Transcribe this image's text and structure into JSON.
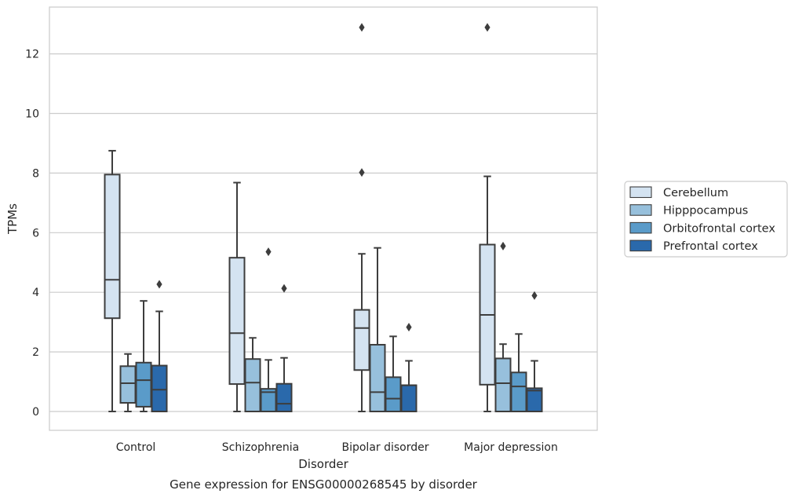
{
  "chart_data": {
    "type": "box",
    "title": "",
    "caption": "Gene expression for ENSG00000268545 by disorder",
    "xlabel": "Disorder",
    "ylabel": "TPMs",
    "ylim": [
      -0.65,
      13.55
    ],
    "yticks": [
      0,
      2,
      4,
      6,
      8,
      10,
      12
    ],
    "grid": "horizontal",
    "legend_position": "right",
    "categories": [
      "Control",
      "Schizophrenia",
      "Bipolar disorder",
      "Major depression"
    ],
    "series": [
      {
        "name": "Cerebellum",
        "color": "#d4e3f1",
        "boxes": [
          {
            "whislo": 0.0,
            "q1": 3.13,
            "med": 4.42,
            "q3": 7.95,
            "whishi": 8.75,
            "fliers": []
          },
          {
            "whislo": 0.0,
            "q1": 0.92,
            "med": 2.63,
            "q3": 5.16,
            "whishi": 7.68,
            "fliers": []
          },
          {
            "whislo": 0.0,
            "q1": 1.39,
            "med": 2.8,
            "q3": 3.41,
            "whishi": 5.29,
            "fliers": [
              8.02,
              12.89
            ]
          },
          {
            "whislo": 0.0,
            "q1": 0.9,
            "med": 3.24,
            "q3": 5.6,
            "whishi": 7.89,
            "fliers": [
              12.89
            ]
          }
        ]
      },
      {
        "name": "Hipppocampus",
        "color": "#97c0dc",
        "boxes": [
          {
            "whislo": 0.0,
            "q1": 0.29,
            "med": 0.95,
            "q3": 1.52,
            "whishi": 1.93,
            "fliers": []
          },
          {
            "whislo": 0.0,
            "q1": 0.0,
            "med": 0.97,
            "q3": 1.76,
            "whishi": 2.47,
            "fliers": []
          },
          {
            "whislo": 0.0,
            "q1": 0.0,
            "med": 0.65,
            "q3": 2.24,
            "whishi": 5.49,
            "fliers": []
          },
          {
            "whislo": 0.0,
            "q1": 0.0,
            "med": 0.95,
            "q3": 1.78,
            "whishi": 2.26,
            "fliers": [
              5.55
            ]
          }
        ]
      },
      {
        "name": "Orbitofrontal cortex",
        "color": "#5a9bc9",
        "boxes": [
          {
            "whislo": 0.0,
            "q1": 0.16,
            "med": 1.05,
            "q3": 1.64,
            "whishi": 3.71,
            "fliers": []
          },
          {
            "whislo": 0.0,
            "q1": 0.0,
            "med": 0.65,
            "q3": 0.76,
            "whishi": 1.73,
            "fliers": [
              5.36
            ]
          },
          {
            "whislo": 0.0,
            "q1": 0.0,
            "med": 0.43,
            "q3": 1.15,
            "whishi": 2.52,
            "fliers": []
          },
          {
            "whislo": 0.0,
            "q1": 0.0,
            "med": 0.84,
            "q3": 1.31,
            "whishi": 2.6,
            "fliers": []
          }
        ]
      },
      {
        "name": "Prefrontal cortex",
        "color": "#2a69ab",
        "boxes": [
          {
            "whislo": 0.0,
            "q1": 0.0,
            "med": 0.73,
            "q3": 1.54,
            "whishi": 3.36,
            "fliers": [
              4.27
            ]
          },
          {
            "whislo": 0.0,
            "q1": 0.0,
            "med": 0.26,
            "q3": 0.93,
            "whishi": 1.8,
            "fliers": [
              4.13
            ]
          },
          {
            "whislo": 0.0,
            "q1": 0.0,
            "med": 0.88,
            "q3": 0.88,
            "whishi": 1.7,
            "fliers": [
              2.83
            ]
          },
          {
            "whislo": 0.0,
            "q1": 0.0,
            "med": 0.7,
            "q3": 0.78,
            "whishi": 1.7,
            "fliers": [
              3.89
            ]
          }
        ]
      }
    ]
  }
}
